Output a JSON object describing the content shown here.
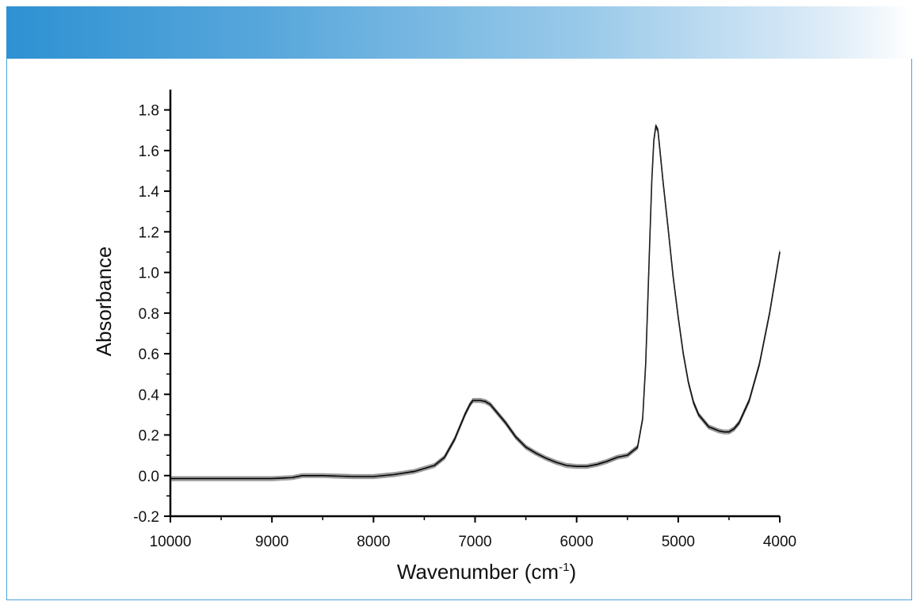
{
  "chart_data": {
    "type": "line",
    "title": "",
    "xlabel": "Wavenumber (cm",
    "xlabel_sup": "-1",
    "xlabel_suffix": ")",
    "ylabel": "Absorbance",
    "xlim": [
      10000,
      4000
    ],
    "ylim": [
      -0.2,
      1.9
    ],
    "x_reversed": true,
    "x_ticks": [
      10000,
      9000,
      8000,
      7000,
      6000,
      5000,
      4000
    ],
    "x_tick_labels": [
      "10000",
      "9000",
      "8000",
      "7000",
      "6000",
      "5000",
      "4000"
    ],
    "y_ticks": [
      -0.2,
      0.0,
      0.2,
      0.4,
      0.6,
      0.8,
      1.0,
      1.2,
      1.4,
      1.6,
      1.8
    ],
    "y_tick_labels": [
      "-0.2",
      "0.0",
      "0.2",
      "0.4",
      "0.6",
      "0.8",
      "1.0",
      "1.2",
      "1.4",
      "1.6",
      "1.8"
    ],
    "grid": false,
    "legend": "none",
    "series": [
      {
        "x": [
          10000,
          9500,
          9000,
          8800,
          8700,
          8500,
          8200,
          8000,
          7800,
          7600,
          7400,
          7300,
          7200,
          7100,
          7050,
          7020,
          7000,
          6950,
          6900,
          6850,
          6800,
          6700,
          6600,
          6500,
          6400,
          6300,
          6200,
          6100,
          6000,
          5900,
          5800,
          5700,
          5600,
          5500,
          5400,
          5350,
          5320,
          5300,
          5280,
          5260,
          5240,
          5220,
          5200,
          5180,
          5150,
          5100,
          5050,
          5000,
          4950,
          4900,
          4850,
          4800,
          4700,
          4600,
          4550,
          4500,
          4450,
          4400,
          4300,
          4200,
          4100,
          4000
        ],
        "y": [
          -0.015,
          -0.015,
          -0.015,
          -0.01,
          0.0,
          0.0,
          -0.005,
          -0.005,
          0.005,
          0.02,
          0.05,
          0.09,
          0.18,
          0.3,
          0.35,
          0.37,
          0.37,
          0.37,
          0.365,
          0.35,
          0.32,
          0.26,
          0.19,
          0.14,
          0.11,
          0.085,
          0.065,
          0.05,
          0.045,
          0.045,
          0.055,
          0.07,
          0.09,
          0.1,
          0.14,
          0.28,
          0.55,
          0.85,
          1.15,
          1.45,
          1.65,
          1.72,
          1.7,
          1.6,
          1.45,
          1.22,
          0.98,
          0.78,
          0.6,
          0.46,
          0.36,
          0.3,
          0.24,
          0.22,
          0.215,
          0.215,
          0.23,
          0.26,
          0.37,
          0.55,
          0.8,
          1.1
        ]
      }
    ]
  }
}
